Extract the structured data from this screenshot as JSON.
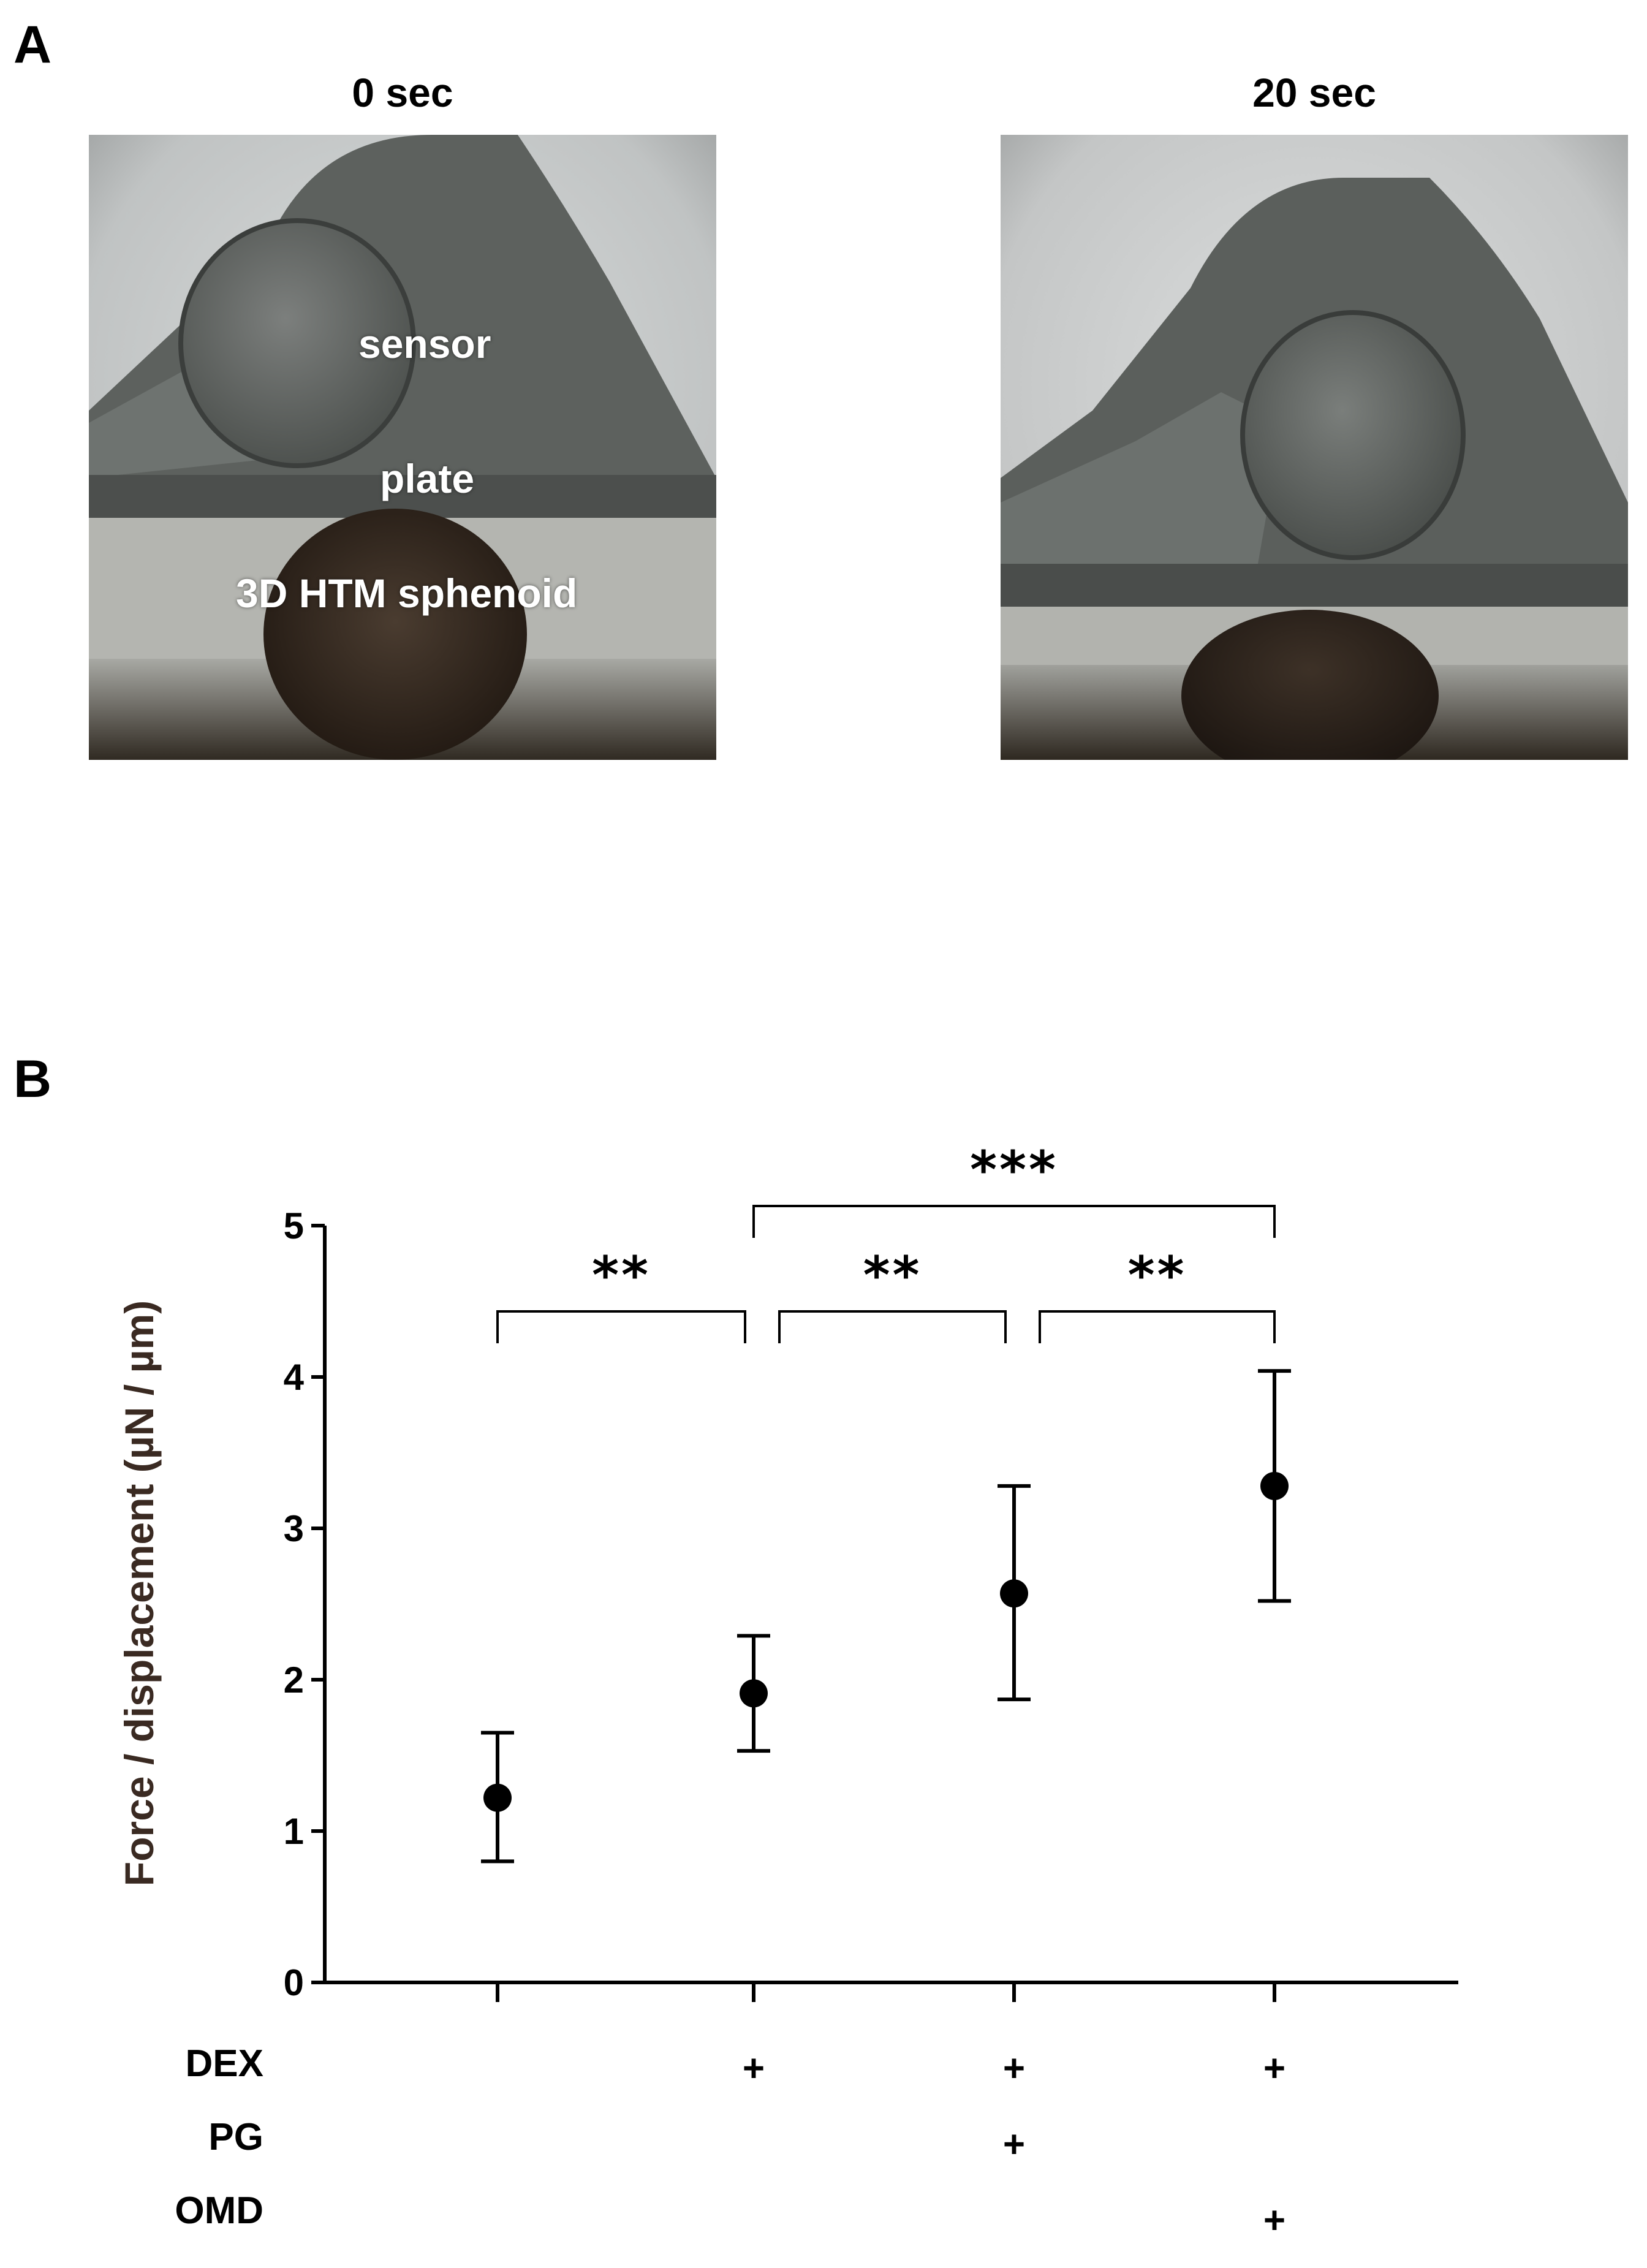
{
  "panels": {
    "a_letter": "A",
    "b_letter": "B"
  },
  "photos": {
    "left": {
      "title": "0 sec",
      "labels": {
        "sensor": "sensor",
        "plate": "plate",
        "spheroid": "3D HTM sphenoid"
      }
    },
    "right": {
      "title": "20 sec"
    }
  },
  "chart_data": {
    "type": "scatter",
    "title": "",
    "xlabel": "",
    "ylabel": "Force / displacement (µN / µm)",
    "ylim": [
      0,
      5
    ],
    "yticks": [
      0,
      1,
      2,
      3,
      4,
      5
    ],
    "grid": false,
    "groups": [
      {
        "dex": "",
        "pg": "",
        "omd": "",
        "mean": 1.22,
        "lower": 0.8,
        "upper": 1.65
      },
      {
        "dex": "+",
        "pg": "",
        "omd": "",
        "mean": 1.91,
        "lower": 1.53,
        "upper": 2.29
      },
      {
        "dex": "+",
        "pg": "+",
        "omd": "",
        "mean": 2.57,
        "lower": 1.87,
        "upper": 3.28
      },
      {
        "dex": "+",
        "pg": "",
        "omd": "+",
        "mean": 3.28,
        "lower": 2.52,
        "upper": 4.04
      }
    ],
    "row_labels": {
      "dex": "DEX",
      "pg": "PG",
      "omd": "OMD"
    },
    "significance": [
      {
        "from": 0,
        "to": 1,
        "level": 1,
        "label": "**"
      },
      {
        "from": 1,
        "to": 2,
        "level": 1,
        "label": "**"
      },
      {
        "from": 2,
        "to": 3,
        "level": 1,
        "label": "**"
      },
      {
        "from": 1,
        "to": 3,
        "level": 2,
        "label": "***"
      }
    ],
    "colors": {
      "marker": "#000000",
      "axis": "#000000",
      "ylabel": "#3a2a22"
    }
  }
}
